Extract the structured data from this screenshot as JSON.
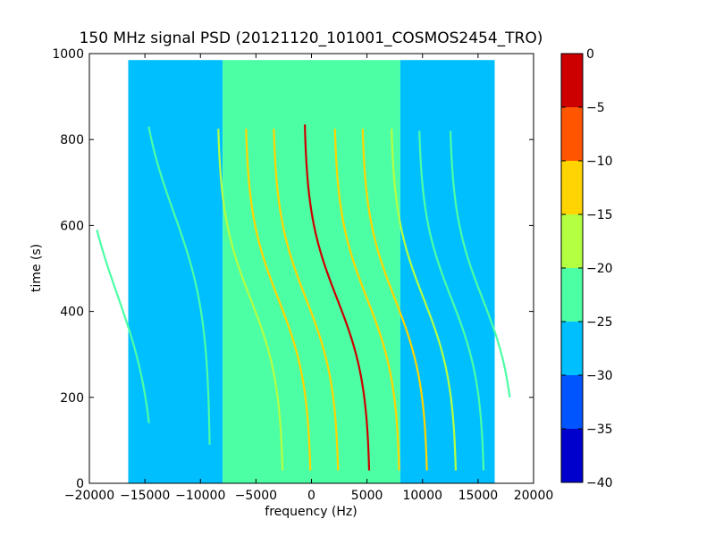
{
  "chart_data": {
    "type": "heatmap",
    "title": "150 MHz signal PSD (20121120_101001_COSMOS2454_TRO)",
    "xlabel": "frequency (Hz)",
    "ylabel": "time (s)",
    "xlim": [
      -20000,
      20000
    ],
    "ylim": [
      0,
      1000
    ],
    "xticks": [
      -20000,
      -15000,
      -10000,
      -5000,
      0,
      5000,
      10000,
      15000,
      20000
    ],
    "yticks": [
      0,
      200,
      400,
      600,
      800,
      1000
    ],
    "data_extent": {
      "x": [
        -16500,
        16500
      ],
      "y": [
        0,
        985
      ]
    },
    "colorbar": {
      "levels": [
        -40,
        -35,
        -30,
        -25,
        -20,
        -15,
        -10,
        -5,
        0
      ],
      "colors": [
        "#0000cd",
        "#0055ff",
        "#00bfff",
        "#4cffa5",
        "#b5ff42",
        "#ffd400",
        "#ff5500",
        "#cd0000"
      ],
      "ticks": [
        0,
        -5,
        -10,
        -15,
        -20,
        -25,
        -30,
        -35,
        -40
      ]
    },
    "background_regions": [
      {
        "x": [
          -16500,
          -8000
        ],
        "level": -27.5
      },
      {
        "x": [
          -8000,
          8000
        ],
        "level": -22.5
      },
      {
        "x": [
          8000,
          16500
        ],
        "level": -27.5
      }
    ],
    "series": [
      {
        "center": -17500,
        "t0": 440,
        "amp": 3500,
        "width": 260,
        "t_range": [
          140,
          590
        ],
        "level": -22.5
      },
      {
        "center": -12400,
        "t0": 630,
        "amp": 3300,
        "width": 240,
        "t_range": [
          90,
          830
        ],
        "level": -22.5
      },
      {
        "center": -5500,
        "t0": 430,
        "amp": 3000,
        "width": 200,
        "t_range": [
          30,
          825
        ],
        "level": -17.5
      },
      {
        "center": -3000,
        "t0": 430,
        "amp": 3000,
        "width": 200,
        "t_range": [
          30,
          825
        ],
        "level": -12.5
      },
      {
        "center": -500,
        "t0": 430,
        "amp": 3000,
        "width": 200,
        "t_range": [
          30,
          825
        ],
        "level": -12.5
      },
      {
        "center": 2300,
        "t0": 430,
        "amp": 3000,
        "width": 200,
        "t_range": [
          30,
          835
        ],
        "level": -2.5
      },
      {
        "center": 5000,
        "t0": 430,
        "amp": 3000,
        "width": 200,
        "t_range": [
          30,
          825
        ],
        "level": -12.5
      },
      {
        "center": 7500,
        "t0": 430,
        "amp": 3000,
        "width": 200,
        "t_range": [
          30,
          825
        ],
        "level": -12.5
      },
      {
        "center": 10100,
        "t0": 430,
        "amp": 3000,
        "width": 200,
        "t_range": [
          30,
          825
        ],
        "level": -17.5
      },
      {
        "center": 12600,
        "t0": 430,
        "amp": 3000,
        "width": 200,
        "t_range": [
          30,
          820
        ],
        "level": -22.5
      },
      {
        "center": 15400,
        "t0": 430,
        "amp": 3000,
        "width": 200,
        "t_range": [
          200,
          820
        ],
        "level": -22.5
      }
    ],
    "grid": false
  }
}
